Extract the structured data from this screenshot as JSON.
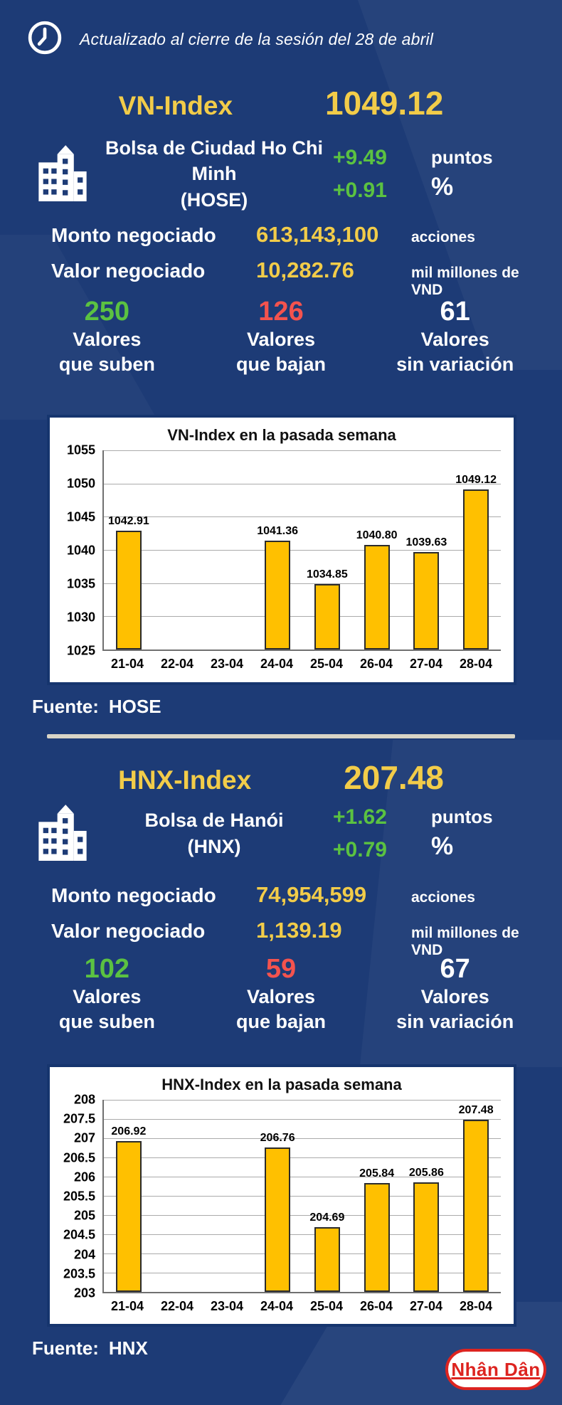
{
  "colors": {
    "background_navy": "#1d3b76",
    "accent_yellow": "#F2CC49",
    "up_green": "#5BC241",
    "down_red": "#F4534E",
    "bar_gold": "#FFC000",
    "panel_border_navy": "#16356E",
    "divider_beige": "#D8D4C6",
    "logo_red": "#DD2420"
  },
  "header": {
    "updated": "Actualizado al cierre de la sesión del 28 de abril",
    "clock_icon": "clock-icon"
  },
  "vn": {
    "index_name": "VN-Index",
    "index_value": "1049.12",
    "exchange_name": "Bolsa de Ciudad Ho Chi Minh",
    "exchange_code": "(HOSE)",
    "building_icon": "building-icon",
    "change_points": "+9.49",
    "points_label": "puntos",
    "change_percent": "+0.91",
    "percent_label": "%",
    "volume_label": "Monto negociado",
    "volume_value": "613,143,100",
    "volume_unit": "acciones",
    "value_label": "Valor negociado",
    "value_value": "10,282.76",
    "value_unit": "mil millones de VND",
    "advancers": {
      "value": "250",
      "line1": "Valores",
      "line2": "que suben"
    },
    "decliners": {
      "value": "126",
      "line1": "Valores",
      "line2": "que bajan"
    },
    "unchanged": {
      "value": "61",
      "line1": "Valores",
      "line2": "sin variación"
    },
    "source_prefix": "Fuente:",
    "source": "HOSE"
  },
  "hnx": {
    "index_name": "HNX-Index",
    "index_value": "207.48",
    "exchange_name": "Bolsa de Hanói",
    "exchange_code": "(HNX)",
    "building_icon": "building-icon",
    "change_points": "+1.62",
    "points_label": "puntos",
    "change_percent": "+0.79",
    "percent_label": "%",
    "volume_label": "Monto negociado",
    "volume_value": "74,954,599",
    "volume_unit": "acciones",
    "value_label": "Valor negociado",
    "value_value": "1,139.19",
    "value_unit": "mil millones de VND",
    "advancers": {
      "value": "102",
      "line1": "Valores",
      "line2": "que suben"
    },
    "decliners": {
      "value": "59",
      "line1": "Valores",
      "line2": "que bajan"
    },
    "unchanged": {
      "value": "67",
      "line1": "Valores",
      "line2": "sin variación"
    },
    "source_prefix": "Fuente:",
    "source": "HNX"
  },
  "chart_data": [
    {
      "type": "bar",
      "title": "VN-Index en la pasada semana",
      "categories": [
        "21-04",
        "22-04",
        "23-04",
        "24-04",
        "25-04",
        "26-04",
        "27-04",
        "28-04"
      ],
      "values": [
        1042.91,
        null,
        null,
        1041.36,
        1034.85,
        1040.8,
        1039.63,
        1049.12
      ],
      "value_labels": [
        "1042.91",
        "",
        "",
        "1041.36",
        "1034.85",
        "1040.80",
        "1039.63",
        "1049.12"
      ],
      "xlabel": "",
      "ylabel": "",
      "ylim": [
        1025,
        1055
      ],
      "ytick_step": 5,
      "grid": true,
      "legend": false,
      "bar_color": "#FFC000"
    },
    {
      "type": "bar",
      "title": "HNX-Index en la pasada semana",
      "categories": [
        "21-04",
        "22-04",
        "23-04",
        "24-04",
        "25-04",
        "26-04",
        "27-04",
        "28-04"
      ],
      "values": [
        206.92,
        null,
        null,
        206.76,
        204.69,
        205.84,
        205.86,
        207.48
      ],
      "value_labels": [
        "206.92",
        "",
        "",
        "206.76",
        "204.69",
        "205.84",
        "205.86",
        "207.48"
      ],
      "xlabel": "",
      "ylabel": "",
      "ylim": [
        203,
        208
      ],
      "ytick_step": 0.5,
      "grid": true,
      "legend": false,
      "bar_color": "#FFC000"
    }
  ],
  "footer": {
    "logo": "Nhân Dân"
  }
}
